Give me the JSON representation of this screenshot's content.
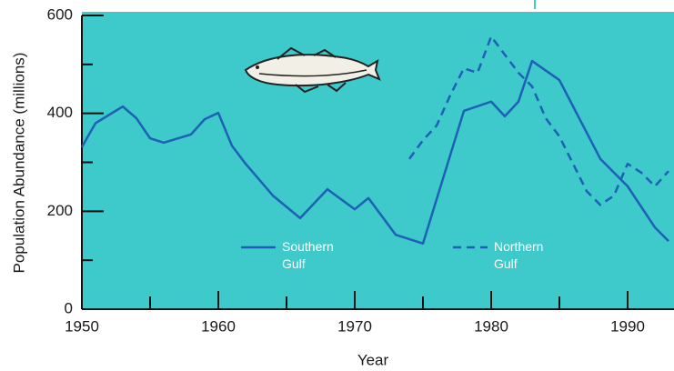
{
  "chart_data": {
    "type": "line",
    "x_label": "Year",
    "y_label": "Population Abundance (millions)",
    "xlim": [
      1950,
      1993
    ],
    "ylim": [
      0,
      600
    ],
    "xticks": [
      1950,
      1960,
      1970,
      1980,
      1990
    ],
    "xminorticks": [
      1955,
      1965,
      1975,
      1985
    ],
    "yticks": [
      0,
      200,
      400,
      600
    ],
    "yminorticks": [
      100,
      300,
      500
    ],
    "background": "#3ec9cb",
    "series": [
      {
        "name": "Southern Gulf",
        "color": "#1f5fb8",
        "dash": false,
        "x": [
          1950,
          1951,
          1953,
          1954,
          1955,
          1956,
          1958,
          1959,
          1960,
          1961,
          1962,
          1964,
          1966,
          1968,
          1970,
          1971,
          1973,
          1975,
          1978,
          1980,
          1981,
          1982,
          1983,
          1985,
          1988,
          1990,
          1992,
          1993
        ],
        "values": [
          331,
          380,
          414,
          390,
          349,
          340,
          357,
          388,
          401,
          334,
          297,
          232,
          186,
          245,
          204,
          227,
          152,
          134,
          405,
          424,
          394,
          424,
          507,
          468,
          307,
          251,
          167,
          139
        ]
      },
      {
        "name": "Northern Gulf",
        "color": "#1f5fb8",
        "dash": true,
        "x": [
          1974,
          1975,
          1976,
          1977,
          1978,
          1979,
          1980,
          1981,
          1982,
          1983,
          1984,
          1985,
          1986,
          1987,
          1988,
          1989,
          1990,
          1991,
          1992,
          1993
        ],
        "values": [
          307,
          345,
          375,
          437,
          492,
          483,
          557,
          520,
          483,
          455,
          390,
          353,
          297,
          241,
          213,
          232,
          297,
          279,
          251,
          282
        ]
      }
    ]
  }
}
